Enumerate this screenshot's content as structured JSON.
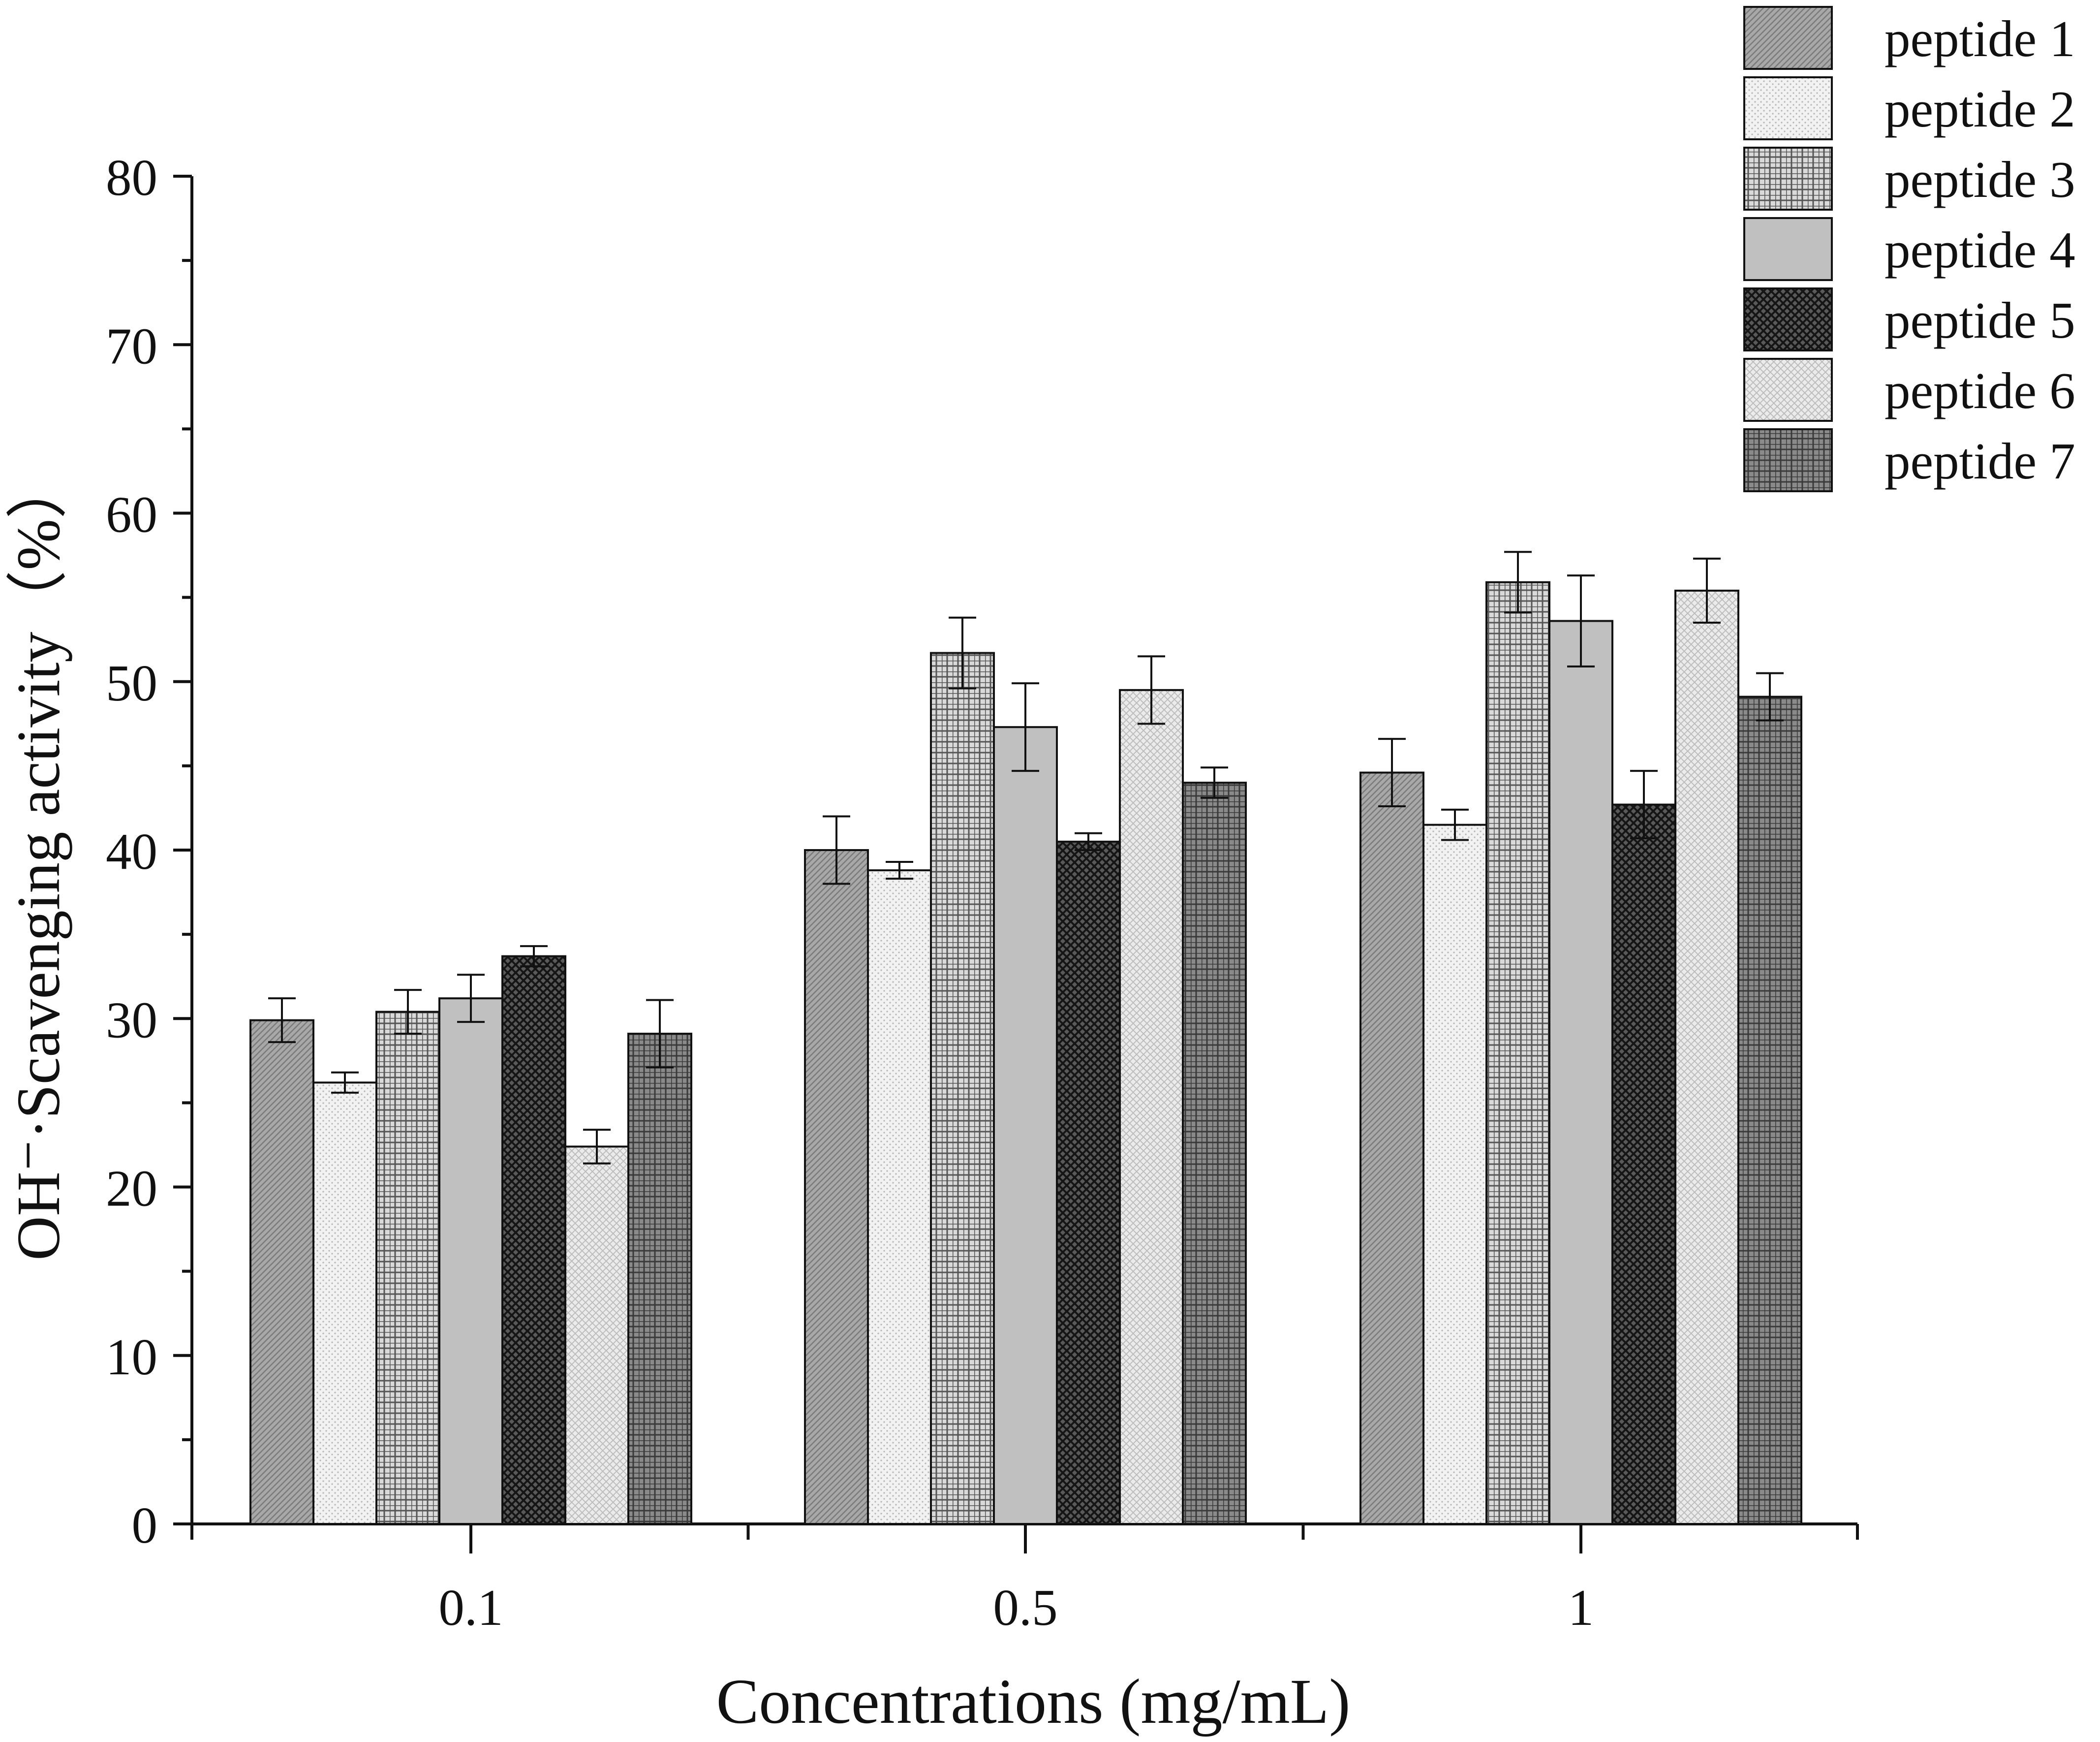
{
  "chart_data": {
    "type": "bar",
    "title": "",
    "xlabel": "Concentrations (mg/mL)",
    "ylabel": "OH⁻·Scavenging activity（%）",
    "ylim": [
      0,
      80
    ],
    "yticks": [
      "0",
      "10",
      "20",
      "30",
      "40",
      "50",
      "60",
      "70",
      "80"
    ],
    "grid": false,
    "legend_position": "top-right",
    "categories": [
      "0.1",
      "0.5",
      "1"
    ],
    "series": [
      {
        "name": "peptide 1",
        "values": [
          29.9,
          40.0,
          44.6
        ],
        "errors": [
          1.3,
          2.0,
          2.0
        ],
        "color": "#a6a6a6",
        "pattern": "fine-diagonal"
      },
      {
        "name": "peptide 2",
        "values": [
          26.2,
          38.8,
          41.5
        ],
        "errors": [
          0.6,
          0.5,
          0.9
        ],
        "color": "#ececec",
        "pattern": "fine-dots"
      },
      {
        "name": "peptide 3",
        "values": [
          30.4,
          51.7,
          55.9
        ],
        "errors": [
          1.3,
          2.1,
          1.8
        ],
        "color": "#cfcfcf",
        "pattern": "grid"
      },
      {
        "name": "peptide 4",
        "values": [
          31.2,
          47.3,
          53.6
        ],
        "errors": [
          1.4,
          2.6,
          2.7
        ],
        "color": "#c0c0c0",
        "pattern": "solid"
      },
      {
        "name": "peptide 5",
        "values": [
          33.7,
          40.5,
          42.7
        ],
        "errors": [
          0.6,
          0.5,
          2.0
        ],
        "color": "#3a3a3a",
        "pattern": "crosshatch"
      },
      {
        "name": "peptide 6",
        "values": [
          22.4,
          49.5,
          55.4
        ],
        "errors": [
          1.0,
          2.0,
          1.9
        ],
        "color": "#e6e6e6",
        "pattern": "dots"
      },
      {
        "name": "peptide 7",
        "values": [
          29.1,
          44.0,
          49.1
        ],
        "errors": [
          2.0,
          0.9,
          1.4
        ],
        "color": "#6e6e6e",
        "pattern": "grid"
      }
    ]
  }
}
